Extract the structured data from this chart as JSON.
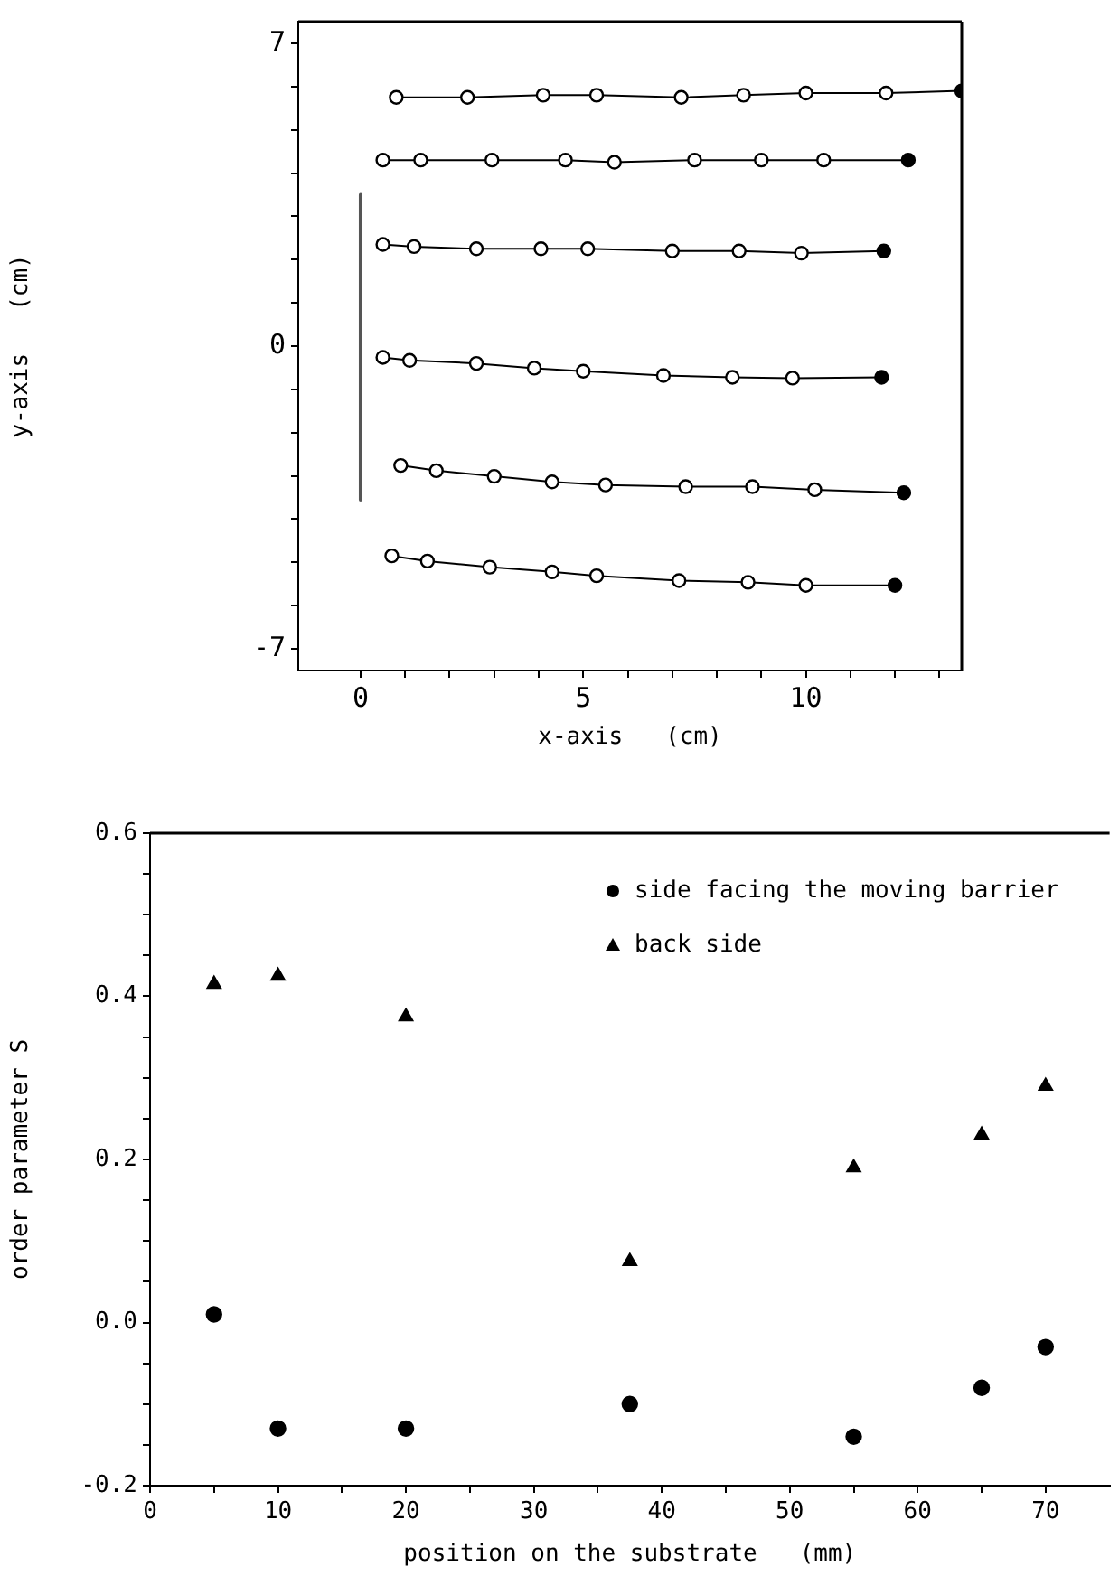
{
  "chart_data": [
    {
      "type": "line",
      "xlabel": "x-axis   (cm)",
      "ylabel": "y-axis   (cm)",
      "xlim": [
        -1.4,
        13.5
      ],
      "ylim": [
        -7.5,
        7.5
      ],
      "grid": false,
      "marker": "circle",
      "xticks": [
        {
          "value": 0,
          "label": "0"
        },
        {
          "value": 1,
          "label": null
        },
        {
          "value": 2,
          "label": null
        },
        {
          "value": 3,
          "label": null
        },
        {
          "value": 4,
          "label": null
        },
        {
          "value": 5,
          "label": "5"
        },
        {
          "value": 6,
          "label": null
        },
        {
          "value": 7,
          "label": null
        },
        {
          "value": 8,
          "label": null
        },
        {
          "value": 9,
          "label": null
        },
        {
          "value": 10,
          "label": "10"
        },
        {
          "value": 11,
          "label": null
        },
        {
          "value": 12,
          "label": null
        },
        {
          "value": 13,
          "label": null
        }
      ],
      "yticks": [
        {
          "value": -7,
          "label": "-7"
        },
        {
          "value": -6,
          "label": null
        },
        {
          "value": -5,
          "label": null
        },
        {
          "value": -4,
          "label": null
        },
        {
          "value": -3,
          "label": null
        },
        {
          "value": -2,
          "label": null
        },
        {
          "value": -1,
          "label": null
        },
        {
          "value": 0,
          "label": "0"
        },
        {
          "value": 1,
          "label": null
        },
        {
          "value": 2,
          "label": null
        },
        {
          "value": 3,
          "label": null
        },
        {
          "value": 4,
          "label": null
        },
        {
          "value": 5,
          "label": null
        },
        {
          "value": 6,
          "label": null
        },
        {
          "value": 7,
          "label": "7"
        }
      ],
      "series": [
        {
          "color": "#000000",
          "x": [
            0.8,
            2.4,
            4.1,
            5.3,
            7.2,
            8.6,
            10,
            11.8,
            13.5
          ],
          "values": [
            5.75,
            5.75,
            5.8,
            5.8,
            5.75,
            5.8,
            5.85,
            5.85,
            5.9
          ]
        },
        {
          "color": "#000000",
          "x": [
            0.5,
            1.35,
            2.95,
            4.6,
            5.7,
            7.5,
            9,
            10.4,
            12.3
          ],
          "values": [
            4.3,
            4.3,
            4.3,
            4.3,
            4.25,
            4.3,
            4.3,
            4.3,
            4.3
          ]
        },
        {
          "color": "#000000",
          "x": [
            0.5,
            1.2,
            2.6,
            4.05,
            5.1,
            7,
            8.5,
            9.9,
            11.75
          ],
          "values": [
            2.35,
            2.3,
            2.25,
            2.25,
            2.25,
            2.2,
            2.2,
            2.15,
            2.2
          ]
        },
        {
          "color": "#000000",
          "x": [
            0.5,
            1.1,
            2.6,
            3.9,
            5,
            6.8,
            8.35,
            9.7,
            11.7
          ],
          "values": [
            -0.26,
            -0.33,
            -0.4,
            -0.51,
            -0.58,
            -0.68,
            -0.72,
            -0.74,
            -0.72
          ]
        },
        {
          "color": "#000000",
          "x": [
            0.9,
            1.7,
            3,
            4.3,
            5.5,
            7.3,
            8.8,
            10.2,
            12.2
          ],
          "values": [
            -2.76,
            -2.88,
            -3.01,
            -3.14,
            -3.21,
            -3.25,
            -3.25,
            -3.32,
            -3.39
          ]
        },
        {
          "color": "#000000",
          "x": [
            0.7,
            1.5,
            2.9,
            4.3,
            5.3,
            7.15,
            8.7,
            10,
            12
          ],
          "values": [
            -4.85,
            -4.97,
            -5.11,
            -5.22,
            -5.31,
            -5.42,
            -5.46,
            -5.53,
            -5.53
          ]
        },
        {
          "color": "#555555",
          "marker": "none",
          "x": [
            0,
            0
          ],
          "values": [
            3.5,
            -3.55
          ]
        }
      ]
    },
    {
      "type": "scatter",
      "xlabel": "position on the substrate   (mm)",
      "ylabel": "order parameter S",
      "xlim": [
        0,
        75
      ],
      "ylim": [
        -0.2,
        0.6
      ],
      "grid": false,
      "legend": "top right",
      "xticks": [
        0,
        {
          "value": 5,
          "label": null
        },
        10,
        {
          "value": 15,
          "label": null
        },
        20,
        {
          "value": 25,
          "label": null
        },
        30,
        {
          "value": 35,
          "label": null
        },
        40,
        {
          "value": 45,
          "label": null
        },
        50,
        {
          "value": 55,
          "label": null
        },
        60,
        {
          "value": 65,
          "label": null
        },
        70
      ],
      "yticks": [
        -0.2,
        {
          "value": -0.15,
          "label": null
        },
        {
          "value": -0.1,
          "label": null
        },
        {
          "value": -0.05,
          "label": null
        },
        {
          "value": 0,
          "label": "0.0"
        },
        {
          "value": 0.05,
          "label": null
        },
        {
          "value": 0.1,
          "label": null
        },
        {
          "value": 0.15,
          "label": null
        },
        0.2,
        {
          "value": 0.25,
          "label": null
        },
        {
          "value": 0.3,
          "label": null
        },
        {
          "value": 0.35,
          "label": null
        },
        0.4,
        {
          "value": 0.45,
          "label": null
        },
        {
          "value": 0.5,
          "label": null
        },
        {
          "value": 0.55,
          "label": null
        },
        0.6
      ],
      "series": [
        {
          "name": "side facing the moving barrier",
          "color": "#000000",
          "marker": "circle",
          "x": [
            5,
            10,
            20,
            37.5,
            55,
            65,
            70
          ],
          "values": [
            0.01,
            -0.13,
            -0.13,
            -0.1,
            -0.14,
            -0.08,
            -0.03
          ]
        },
        {
          "name": "back side",
          "color": "#000000",
          "marker": "triangle",
          "x": [
            5,
            10,
            20,
            37.5,
            55,
            65,
            70
          ],
          "values": [
            0.415,
            0.425,
            0.375,
            0.075,
            0.19,
            0.23,
            0.29
          ]
        }
      ]
    }
  ]
}
